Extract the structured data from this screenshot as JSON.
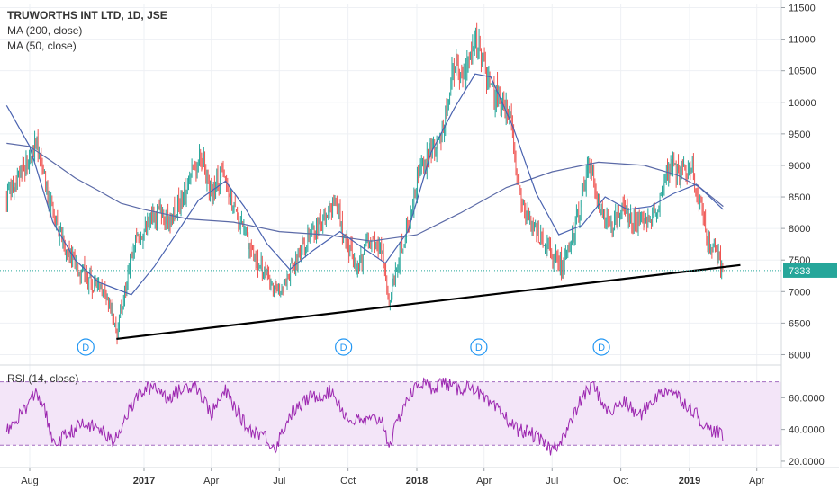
{
  "chart_data": [
    {
      "type": "candlestick",
      "title": "TRUWORTHS INT LTD, 1D, JSE",
      "indicators": [
        "MA (200, close)",
        "MA (50, close)"
      ],
      "y_axis": {
        "position": "right",
        "range": [
          5850,
          11550
        ],
        "ticks": [
          6000,
          6500,
          7000,
          7500,
          8000,
          8500,
          9000,
          9500,
          10000,
          10500,
          11000,
          11500
        ],
        "tick_labels": [
          "6000",
          "6500",
          "7000",
          "7500",
          "8000",
          "8500",
          "9000",
          "9500",
          "10000",
          "10500",
          "11000",
          "11500"
        ]
      },
      "last_price": 7333,
      "last_price_label": "7333",
      "close_path": [
        [
          "2016-07-01",
          8500
        ],
        [
          "2016-07-15",
          8700
        ],
        [
          "2016-08-01",
          9100
        ],
        [
          "2016-08-10",
          9400
        ],
        [
          "2016-08-25",
          8500
        ],
        [
          "2016-09-10",
          7900
        ],
        [
          "2016-09-25",
          7500
        ],
        [
          "2016-10-10",
          7300
        ],
        [
          "2016-10-25",
          7100
        ],
        [
          "2016-11-10",
          7050
        ],
        [
          "2016-11-20",
          6650
        ],
        [
          "2016-11-25",
          6300
        ],
        [
          "2016-12-05",
          6950
        ],
        [
          "2016-12-20",
          7850
        ],
        [
          "2017-01-05",
          8050
        ],
        [
          "2017-01-20",
          8250
        ],
        [
          "2017-02-05",
          8100
        ],
        [
          "2017-02-20",
          8450
        ],
        [
          "2017-03-05",
          8900
        ],
        [
          "2017-03-20",
          9100
        ],
        [
          "2017-04-01",
          8500
        ],
        [
          "2017-04-15",
          8900
        ],
        [
          "2017-05-01",
          8300
        ],
        [
          "2017-05-15",
          7900
        ],
        [
          "2017-06-01",
          7500
        ],
        [
          "2017-06-15",
          7200
        ],
        [
          "2017-07-01",
          6950
        ],
        [
          "2017-07-15",
          7300
        ],
        [
          "2017-08-01",
          7700
        ],
        [
          "2017-08-15",
          7900
        ],
        [
          "2017-09-01",
          8150
        ],
        [
          "2017-09-15",
          8400
        ],
        [
          "2017-10-01",
          7700
        ],
        [
          "2017-10-15",
          7400
        ],
        [
          "2017-11-01",
          7900
        ],
        [
          "2017-11-15",
          7600
        ],
        [
          "2017-11-25",
          6850
        ],
        [
          "2017-12-10",
          7650
        ],
        [
          "2017-12-25",
          8200
        ],
        [
          "2018-01-05",
          9000
        ],
        [
          "2018-01-20",
          9200
        ],
        [
          "2018-02-05",
          9600
        ],
        [
          "2018-02-20",
          10600
        ],
        [
          "2018-03-05",
          10400
        ],
        [
          "2018-03-15",
          10800
        ],
        [
          "2018-03-25",
          10900
        ],
        [
          "2018-04-05",
          10300
        ],
        [
          "2018-04-20",
          10100
        ],
        [
          "2018-05-05",
          9800
        ],
        [
          "2018-05-20",
          8400
        ],
        [
          "2018-06-05",
          8000
        ],
        [
          "2018-06-20",
          7800
        ],
        [
          "2018-07-05",
          7550
        ],
        [
          "2018-07-15",
          7400
        ],
        [
          "2018-07-25",
          7700
        ],
        [
          "2018-08-10",
          8500
        ],
        [
          "2018-08-20",
          9000
        ],
        [
          "2018-09-05",
          8200
        ],
        [
          "2018-09-20",
          8100
        ],
        [
          "2018-10-05",
          8300
        ],
        [
          "2018-10-20",
          8100
        ],
        [
          "2018-11-05",
          8050
        ],
        [
          "2018-11-20",
          8400
        ],
        [
          "2018-12-05",
          9000
        ],
        [
          "2018-12-20",
          8900
        ],
        [
          "2019-01-05",
          8900
        ],
        [
          "2019-01-15",
          8400
        ],
        [
          "2019-01-25",
          7800
        ],
        [
          "2019-02-05",
          7700
        ],
        [
          "2019-02-15",
          7333
        ]
      ],
      "ma200": [
        [
          "2016-07-01",
          9350
        ],
        [
          "2016-08-01",
          9300
        ],
        [
          "2016-09-01",
          9050
        ],
        [
          "2016-10-01",
          8800
        ],
        [
          "2016-11-01",
          8600
        ],
        [
          "2016-12-01",
          8400
        ],
        [
          "2017-01-01",
          8300
        ],
        [
          "2017-03-01",
          8150
        ],
        [
          "2017-05-01",
          8100
        ],
        [
          "2017-07-01",
          7950
        ],
        [
          "2017-09-01",
          7900
        ],
        [
          "2017-11-01",
          7800
        ],
        [
          "2018-01-01",
          7900
        ],
        [
          "2018-03-01",
          8250
        ],
        [
          "2018-05-01",
          8650
        ],
        [
          "2018-07-01",
          8900
        ],
        [
          "2018-09-01",
          9050
        ],
        [
          "2018-11-01",
          9000
        ],
        [
          "2018-12-15",
          8850
        ],
        [
          "2019-01-15",
          8650
        ],
        [
          "2019-02-15",
          8350
        ]
      ],
      "ma50": [
        [
          "2016-07-01",
          9950
        ],
        [
          "2016-08-01",
          9300
        ],
        [
          "2016-09-01",
          8100
        ],
        [
          "2016-10-01",
          7500
        ],
        [
          "2016-11-01",
          7150
        ],
        [
          "2016-12-15",
          6950
        ],
        [
          "2017-01-15",
          7400
        ],
        [
          "2017-02-15",
          7950
        ],
        [
          "2017-03-15",
          8450
        ],
        [
          "2017-04-20",
          8750
        ],
        [
          "2017-05-15",
          8350
        ],
        [
          "2017-06-15",
          7750
        ],
        [
          "2017-07-15",
          7350
        ],
        [
          "2017-08-15",
          7650
        ],
        [
          "2017-09-20",
          7950
        ],
        [
          "2017-10-20",
          7700
        ],
        [
          "2017-11-20",
          7450
        ],
        [
          "2017-12-20",
          7950
        ],
        [
          "2018-01-20",
          9200
        ],
        [
          "2018-02-20",
          9900
        ],
        [
          "2018-03-20",
          10450
        ],
        [
          "2018-04-10",
          10400
        ],
        [
          "2018-05-10",
          9600
        ],
        [
          "2018-06-10",
          8550
        ],
        [
          "2018-07-10",
          7900
        ],
        [
          "2018-08-10",
          8050
        ],
        [
          "2018-09-10",
          8500
        ],
        [
          "2018-10-10",
          8300
        ],
        [
          "2018-11-10",
          8350
        ],
        [
          "2018-12-10",
          8550
        ],
        [
          "2019-01-10",
          8700
        ],
        [
          "2019-02-15",
          8300
        ]
      ],
      "trendline": [
        [
          "2016-11-25",
          6250
        ],
        [
          "2019-03-10",
          7420
        ]
      ],
      "dividend_markers": [
        {
          "date": "2016-10-15",
          "label": "D"
        },
        {
          "date": "2017-09-25",
          "label": "D"
        },
        {
          "date": "2018-03-25",
          "label": "D"
        },
        {
          "date": "2018-09-05",
          "label": "D"
        }
      ],
      "colors": {
        "up": "#26a69a",
        "down": "#ef5350",
        "ma200": "#5b6aa7",
        "ma50": "#4a63b0",
        "trendline": "#000000",
        "last_price": "#26a69a",
        "dividend": "#2196f3"
      }
    },
    {
      "type": "line",
      "title": "RSI (14, close)",
      "y_axis": {
        "position": "right",
        "range": [
          16,
          80
        ],
        "ticks": [
          20,
          40,
          60
        ],
        "tick_labels": [
          "20.0000",
          "40.0000",
          "60.0000"
        ]
      },
      "band": [
        30,
        70
      ],
      "rsi_path": [
        [
          "2016-07-01",
          38
        ],
        [
          "2016-07-20",
          50
        ],
        [
          "2016-08-10",
          63
        ],
        [
          "2016-08-20",
          55
        ],
        [
          "2016-09-01",
          30
        ],
        [
          "2016-09-20",
          37
        ],
        [
          "2016-10-10",
          43
        ],
        [
          "2016-11-01",
          41
        ],
        [
          "2016-11-20",
          32
        ],
        [
          "2016-12-10",
          50
        ],
        [
          "2016-12-25",
          62
        ],
        [
          "2017-01-15",
          68
        ],
        [
          "2017-02-01",
          60
        ],
        [
          "2017-02-20",
          65
        ],
        [
          "2017-03-10",
          69
        ],
        [
          "2017-04-01",
          50
        ],
        [
          "2017-04-20",
          64
        ],
        [
          "2017-05-20",
          40
        ],
        [
          "2017-06-10",
          37
        ],
        [
          "2017-06-25",
          28
        ],
        [
          "2017-07-15",
          49
        ],
        [
          "2017-08-10",
          60
        ],
        [
          "2017-09-10",
          64
        ],
        [
          "2017-10-01",
          46
        ],
        [
          "2017-10-25",
          45
        ],
        [
          "2017-11-15",
          47
        ],
        [
          "2017-11-25",
          30
        ],
        [
          "2017-12-15",
          56
        ],
        [
          "2018-01-05",
          70
        ],
        [
          "2018-01-20",
          66
        ],
        [
          "2018-02-05",
          70
        ],
        [
          "2018-02-25",
          65
        ],
        [
          "2018-03-15",
          68
        ],
        [
          "2018-04-05",
          57
        ],
        [
          "2018-04-25",
          50
        ],
        [
          "2018-05-15",
          40
        ],
        [
          "2018-06-01",
          38
        ],
        [
          "2018-06-15",
          33
        ],
        [
          "2018-07-01",
          27
        ],
        [
          "2018-07-20",
          38
        ],
        [
          "2018-08-10",
          60
        ],
        [
          "2018-08-25",
          68
        ],
        [
          "2018-09-15",
          50
        ],
        [
          "2018-10-05",
          58
        ],
        [
          "2018-10-25",
          48
        ],
        [
          "2018-11-15",
          60
        ],
        [
          "2018-12-05",
          66
        ],
        [
          "2018-12-25",
          57
        ],
        [
          "2019-01-10",
          50
        ],
        [
          "2019-01-25",
          40
        ],
        [
          "2019-02-05",
          39
        ],
        [
          "2019-02-15",
          36
        ]
      ],
      "colors": {
        "line": "#9c27b0",
        "band_fill": "#f3e5f8",
        "band_border": "#a36cc0"
      }
    }
  ],
  "x_axis": {
    "labels": [
      {
        "date": "2016-08-01",
        "label": "Aug",
        "bold": false
      },
      {
        "date": "2017-01-01",
        "label": "2017",
        "bold": true
      },
      {
        "date": "2017-04-01",
        "label": "Apr",
        "bold": false
      },
      {
        "date": "2017-07-01",
        "label": "Jul",
        "bold": false
      },
      {
        "date": "2017-10-01",
        "label": "Oct",
        "bold": false
      },
      {
        "date": "2018-01-01",
        "label": "2018",
        "bold": true
      },
      {
        "date": "2018-04-01",
        "label": "Apr",
        "bold": false
      },
      {
        "date": "2018-07-01",
        "label": "Jul",
        "bold": false
      },
      {
        "date": "2018-10-01",
        "label": "Oct",
        "bold": false
      },
      {
        "date": "2019-01-01",
        "label": "2019",
        "bold": true
      },
      {
        "date": "2019-04-01",
        "label": "Apr",
        "bold": false
      }
    ]
  }
}
